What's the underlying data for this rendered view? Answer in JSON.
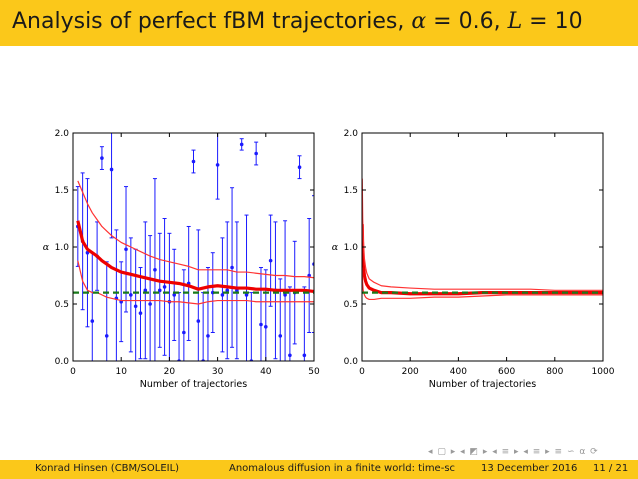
{
  "slide": {
    "title_prefix": "Analysis of perfect fBM trajectories, ",
    "title_alpha_sym": "α",
    "title_alpha_eq": " = 0.6, ",
    "title_L_sym": "L",
    "title_L_eq": " = 10",
    "nav_symbols": "◂ ▢ ▸ ◂ ◩ ▸ ◂ ≡ ▸ ◂ ≡ ▸ ≡ ∽ α ⟳",
    "colors": {
      "bar": "#fbc81a",
      "points": "#1a1aff",
      "mean": "#ee0000",
      "band": "#ff3333",
      "reference": "#1a7a1a"
    }
  },
  "footer": {
    "author": "Konrad Hinsen  (CBM/SOLEIL)",
    "talk": "Anomalous diffusion in a finite world: time-sc",
    "date": "13 December 2016",
    "page": "11 / 21"
  },
  "chart_data": [
    {
      "type": "scatter",
      "title": "",
      "xlabel": "Number of trajectories",
      "ylabel": "α",
      "xlim": [
        0,
        50
      ],
      "ylim": [
        0,
        2
      ],
      "xticks": [
        "0",
        "10",
        "20",
        "30",
        "40",
        "50"
      ],
      "yticks": [
        "0.0",
        "0.5",
        "1.0",
        "1.5",
        "2.0"
      ],
      "reference_alpha": 0.6,
      "series": [
        {
          "name": "per-trajectory estimates",
          "style": "points-with-errorbars",
          "x": [
            1,
            2,
            3,
            4,
            5,
            6,
            7,
            8,
            9,
            10,
            11,
            12,
            13,
            14,
            15,
            16,
            17,
            18,
            19,
            20,
            21,
            22,
            23,
            24,
            25,
            26,
            27,
            28,
            29,
            30,
            31,
            32,
            33,
            34,
            35,
            36,
            37,
            38,
            39,
            40,
            41,
            42,
            43,
            44,
            45,
            46,
            47,
            48,
            49,
            50
          ],
          "y": [
            1.18,
            1.05,
            0.95,
            0.35,
            0.92,
            1.78,
            0.22,
            1.68,
            0.55,
            0.52,
            0.98,
            0.58,
            0.48,
            0.42,
            0.62,
            0.5,
            0.8,
            0.62,
            0.65,
            0.52,
            0.58,
            0.0,
            0.25,
            0.68,
            1.75,
            0.35,
            0.0,
            0.22,
            0.6,
            1.72,
            0.58,
            0.62,
            0.82,
            0.62,
            1.9,
            0.58,
            0.0,
            1.82,
            0.32,
            0.3,
            0.88,
            0.62,
            0.22,
            0.58,
            0.05,
            0.6,
            1.7,
            0.05,
            0.75,
            0.85
          ],
          "err": [
            0.35,
            0.6,
            0.65,
            0.6,
            0.3,
            0.1,
            0.65,
            0.6,
            0.6,
            0.35,
            0.55,
            0.5,
            0.5,
            0.4,
            0.6,
            0.6,
            0.8,
            0.5,
            0.6,
            0.6,
            0.4,
            0.6,
            0.55,
            0.5,
            0.1,
            0.8,
            0.6,
            0.6,
            0.35,
            0.3,
            0.5,
            0.6,
            0.7,
            0.6,
            0.05,
            0.7,
            0.6,
            0.1,
            0.5,
            0.5,
            0.4,
            0.6,
            0.5,
            0.65,
            0.6,
            0.45,
            0.1,
            0.6,
            0.5,
            0.6
          ]
        },
        {
          "name": "running mean",
          "style": "line",
          "x": [
            1,
            2,
            3,
            4,
            5,
            6,
            7,
            8,
            9,
            10,
            12,
            14,
            16,
            18,
            20,
            22,
            24,
            26,
            28,
            30,
            32,
            34,
            36,
            38,
            40,
            42,
            44,
            46,
            48,
            50
          ],
          "y": [
            1.23,
            1.05,
            0.98,
            0.95,
            0.92,
            0.88,
            0.85,
            0.82,
            0.8,
            0.78,
            0.76,
            0.74,
            0.72,
            0.7,
            0.69,
            0.68,
            0.66,
            0.63,
            0.65,
            0.66,
            0.65,
            0.64,
            0.64,
            0.63,
            0.63,
            0.62,
            0.62,
            0.62,
            0.62,
            0.61
          ]
        },
        {
          "name": "upper bound",
          "style": "line",
          "x": [
            1,
            2,
            3,
            4,
            5,
            6,
            7,
            8,
            9,
            10,
            12,
            14,
            16,
            18,
            20,
            22,
            24,
            26,
            28,
            30,
            32,
            34,
            36,
            38,
            40,
            42,
            44,
            46,
            48,
            50
          ],
          "y": [
            1.58,
            1.48,
            1.38,
            1.3,
            1.24,
            1.18,
            1.14,
            1.1,
            1.07,
            1.04,
            1.0,
            0.96,
            0.92,
            0.89,
            0.87,
            0.85,
            0.83,
            0.8,
            0.8,
            0.8,
            0.8,
            0.78,
            0.78,
            0.77,
            0.76,
            0.75,
            0.75,
            0.74,
            0.74,
            0.73
          ]
        },
        {
          "name": "lower bound",
          "style": "line",
          "x": [
            1,
            2,
            3,
            4,
            5,
            6,
            7,
            8,
            9,
            10,
            12,
            14,
            16,
            18,
            20,
            22,
            24,
            26,
            28,
            30,
            32,
            34,
            36,
            38,
            40,
            42,
            44,
            46,
            48,
            50
          ],
          "y": [
            0.88,
            0.7,
            0.62,
            0.6,
            0.6,
            0.58,
            0.56,
            0.55,
            0.54,
            0.53,
            0.53,
            0.53,
            0.53,
            0.53,
            0.52,
            0.52,
            0.51,
            0.5,
            0.52,
            0.53,
            0.53,
            0.53,
            0.53,
            0.52,
            0.52,
            0.52,
            0.52,
            0.52,
            0.52,
            0.52
          ]
        }
      ]
    },
    {
      "type": "line",
      "title": "",
      "xlabel": "Number of trajectories",
      "ylabel": "α",
      "xlim": [
        0,
        1000
      ],
      "ylim": [
        0,
        2
      ],
      "xticks": [
        "0",
        "200",
        "400",
        "600",
        "800",
        "1000"
      ],
      "yticks": [
        "0.0",
        "0.5",
        "1.0",
        "1.5",
        "2.0"
      ],
      "reference_alpha": 0.6,
      "series": [
        {
          "name": "running mean",
          "style": "line",
          "x": [
            1,
            3,
            5,
            10,
            15,
            20,
            30,
            50,
            80,
            120,
            200,
            300,
            400,
            500,
            600,
            700,
            800,
            900,
            1000
          ],
          "y": [
            1.2,
            0.95,
            0.85,
            0.75,
            0.7,
            0.67,
            0.64,
            0.62,
            0.6,
            0.6,
            0.59,
            0.59,
            0.59,
            0.6,
            0.6,
            0.6,
            0.6,
            0.6,
            0.6
          ]
        },
        {
          "name": "upper bound",
          "style": "line",
          "x": [
            1,
            3,
            5,
            10,
            15,
            20,
            30,
            50,
            80,
            120,
            200,
            300,
            400,
            500,
            600,
            700,
            800,
            900,
            1000
          ],
          "y": [
            1.6,
            1.25,
            1.08,
            0.9,
            0.82,
            0.77,
            0.72,
            0.69,
            0.66,
            0.65,
            0.64,
            0.63,
            0.63,
            0.63,
            0.63,
            0.63,
            0.62,
            0.62,
            0.62
          ]
        },
        {
          "name": "lower bound",
          "style": "line",
          "x": [
            1,
            3,
            5,
            10,
            15,
            20,
            30,
            50,
            80,
            120,
            200,
            300,
            400,
            500,
            600,
            700,
            800,
            900,
            1000
          ],
          "y": [
            0.82,
            0.68,
            0.62,
            0.58,
            0.56,
            0.55,
            0.54,
            0.54,
            0.55,
            0.55,
            0.55,
            0.56,
            0.56,
            0.57,
            0.58,
            0.58,
            0.58,
            0.58,
            0.58
          ]
        }
      ]
    }
  ]
}
